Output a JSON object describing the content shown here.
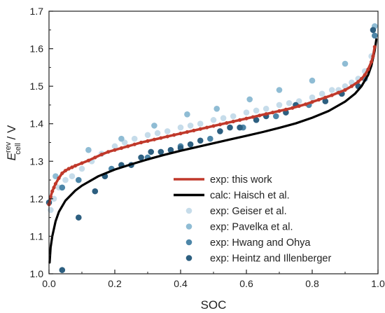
{
  "chart_data": {
    "type": "scatter",
    "title": "",
    "xlabel": "SOC",
    "ylabel": {
      "main": "E",
      "sup": "rev",
      "sub": "cell",
      "unit": " / V"
    },
    "xlim": [
      0,
      1.0
    ],
    "ylim": [
      1.0,
      1.7
    ],
    "xticks": [
      "0.0",
      "0.2",
      "0.4",
      "0.6",
      "0.8",
      "1.0"
    ],
    "yticks": [
      "1.0",
      "1.1",
      "1.2",
      "1.3",
      "1.4",
      "1.5",
      "1.6",
      "1.7"
    ],
    "grid": false,
    "legend_position": "bottom-right",
    "series": [
      {
        "name": "exp: this work",
        "kind": "thick-line-markers",
        "color": "#c0392b",
        "x": [
          0.0,
          0.005,
          0.01,
          0.015,
          0.02,
          0.03,
          0.04,
          0.05,
          0.06,
          0.07,
          0.08,
          0.1,
          0.12,
          0.14,
          0.16,
          0.18,
          0.2,
          0.22,
          0.24,
          0.26,
          0.28,
          0.3,
          0.32,
          0.34,
          0.36,
          0.38,
          0.4,
          0.42,
          0.44,
          0.46,
          0.48,
          0.5,
          0.52,
          0.54,
          0.56,
          0.58,
          0.6,
          0.62,
          0.64,
          0.66,
          0.68,
          0.7,
          0.72,
          0.74,
          0.76,
          0.78,
          0.8,
          0.82,
          0.84,
          0.86,
          0.88,
          0.9,
          0.92,
          0.94,
          0.95,
          0.96,
          0.97,
          0.98,
          0.985,
          0.99
        ],
        "y": [
          1.185,
          1.205,
          1.22,
          1.23,
          1.24,
          1.255,
          1.268,
          1.275,
          1.28,
          1.284,
          1.288,
          1.295,
          1.302,
          1.31,
          1.318,
          1.325,
          1.33,
          1.335,
          1.34,
          1.345,
          1.35,
          1.354,
          1.358,
          1.362,
          1.366,
          1.37,
          1.374,
          1.378,
          1.382,
          1.386,
          1.39,
          1.394,
          1.398,
          1.402,
          1.406,
          1.41,
          1.414,
          1.418,
          1.422,
          1.426,
          1.43,
          1.434,
          1.438,
          1.442,
          1.447,
          1.452,
          1.458,
          1.464,
          1.47,
          1.476,
          1.483,
          1.49,
          1.5,
          1.512,
          1.52,
          1.53,
          1.545,
          1.565,
          1.58,
          1.605
        ]
      },
      {
        "name": "calc: Haisch et al.",
        "kind": "line",
        "color": "#000000",
        "x": [
          0.002,
          0.005,
          0.01,
          0.02,
          0.03,
          0.05,
          0.08,
          0.1,
          0.15,
          0.2,
          0.25,
          0.3,
          0.35,
          0.4,
          0.45,
          0.5,
          0.55,
          0.6,
          0.65,
          0.7,
          0.75,
          0.8,
          0.85,
          0.9,
          0.93,
          0.95,
          0.97,
          0.98,
          0.99,
          0.995
        ],
        "y": [
          1.03,
          1.07,
          1.1,
          1.14,
          1.165,
          1.195,
          1.222,
          1.235,
          1.26,
          1.278,
          1.292,
          1.305,
          1.317,
          1.328,
          1.338,
          1.348,
          1.358,
          1.368,
          1.378,
          1.389,
          1.401,
          1.416,
          1.434,
          1.459,
          1.48,
          1.5,
          1.53,
          1.555,
          1.595,
          1.625
        ]
      },
      {
        "name": "exp: Geiser et al.",
        "kind": "markers",
        "color": "#c6dcea",
        "x": [
          0.005,
          0.015,
          0.03,
          0.05,
          0.07,
          0.1,
          0.13,
          0.16,
          0.2,
          0.23,
          0.26,
          0.3,
          0.33,
          0.36,
          0.4,
          0.43,
          0.46,
          0.5,
          0.53,
          0.56,
          0.6,
          0.63,
          0.66,
          0.7,
          0.73,
          0.76,
          0.8,
          0.83,
          0.86,
          0.88,
          0.9,
          0.92,
          0.94,
          0.96,
          0.98
        ],
        "y": [
          1.17,
          1.2,
          1.23,
          1.25,
          1.26,
          1.28,
          1.3,
          1.32,
          1.34,
          1.35,
          1.36,
          1.37,
          1.375,
          1.38,
          1.39,
          1.395,
          1.4,
          1.41,
          1.415,
          1.42,
          1.43,
          1.435,
          1.44,
          1.45,
          1.455,
          1.46,
          1.47,
          1.48,
          1.49,
          1.49,
          1.5,
          1.51,
          1.52,
          1.54,
          1.58
        ]
      },
      {
        "name": "exp: Pavelka et al.",
        "kind": "markers",
        "color": "#8fbcd4",
        "x": [
          0.02,
          0.12,
          0.22,
          0.32,
          0.42,
          0.51,
          0.61,
          0.7,
          0.8,
          0.9,
          0.99
        ],
        "y": [
          1.26,
          1.33,
          1.36,
          1.395,
          1.425,
          1.44,
          1.465,
          1.49,
          1.515,
          1.56,
          1.66
        ]
      },
      {
        "name": "exp: Hwang and Ohya",
        "kind": "markers",
        "color": "#4d86a8",
        "x": [
          0.04,
          0.09,
          0.19,
          0.3,
          0.4,
          0.49,
          0.59,
          0.69,
          0.79,
          0.89,
          0.96,
          0.99
        ],
        "y": [
          1.23,
          1.25,
          1.28,
          1.31,
          1.34,
          1.36,
          1.39,
          1.42,
          1.45,
          1.48,
          1.52,
          1.635
        ]
      },
      {
        "name": "exp: Heintz and Illenberger",
        "kind": "markers",
        "color": "#2d5f80",
        "x": [
          0.0,
          0.04,
          0.09,
          0.14,
          0.17,
          0.22,
          0.25,
          0.28,
          0.31,
          0.34,
          0.37,
          0.4,
          0.43,
          0.46,
          0.52,
          0.55,
          0.58,
          0.63,
          0.66,
          0.72,
          0.75,
          0.84,
          0.89,
          0.94,
          0.985
        ],
        "y": [
          1.19,
          1.01,
          1.15,
          1.22,
          1.26,
          1.29,
          1.29,
          1.31,
          1.325,
          1.325,
          1.33,
          1.335,
          1.345,
          1.355,
          1.38,
          1.39,
          1.39,
          1.41,
          1.42,
          1.43,
          1.45,
          1.46,
          1.48,
          1.5,
          1.65
        ]
      }
    ]
  }
}
